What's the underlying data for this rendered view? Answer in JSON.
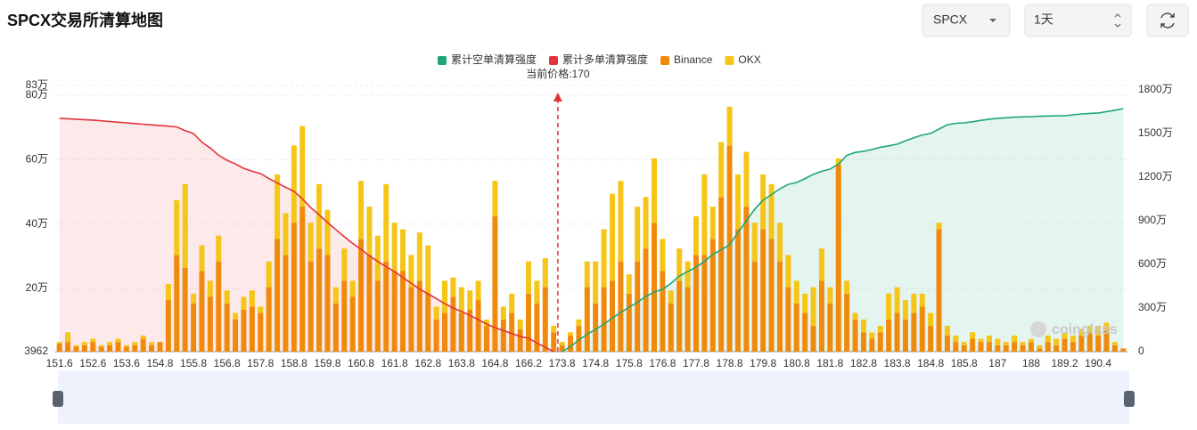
{
  "header": {
    "title": "SPCX交易所清算地图",
    "symbol_select": "SPCX",
    "interval_select": "1天"
  },
  "chart_data": {
    "type": "bar",
    "annotation": "当前价格:170",
    "watermark": "coinglass",
    "grid": true,
    "legend": "top",
    "categories": [
      "151.6",
      null,
      null,
      null,
      "152.6",
      null,
      null,
      null,
      "153.6",
      null,
      null,
      null,
      "154.8",
      null,
      null,
      null,
      "155.8",
      null,
      null,
      null,
      "156.8",
      null,
      null,
      null,
      "157.8",
      null,
      null,
      null,
      "158.8",
      null,
      null,
      null,
      "159.8",
      null,
      null,
      null,
      "160.8",
      null,
      null,
      null,
      "161.8",
      null,
      null,
      null,
      "162.8",
      null,
      null,
      null,
      "163.8",
      null,
      null,
      null,
      "164.8",
      null,
      null,
      null,
      "166.2",
      null,
      null,
      null,
      "173.8",
      null,
      null,
      null,
      "174.8",
      null,
      null,
      null,
      "175.8",
      null,
      null,
      null,
      "176.8",
      null,
      null,
      null,
      "177.8",
      null,
      null,
      null,
      "178.8",
      null,
      null,
      null,
      "179.8",
      null,
      null,
      null,
      "180.8",
      null,
      null,
      null,
      "181.8",
      null,
      null,
      null,
      "182.8",
      null,
      null,
      null,
      "183.8",
      null,
      null,
      null,
      "184.8",
      null,
      null,
      null,
      "185.8",
      null,
      null,
      null,
      "187",
      null,
      null,
      null,
      "188",
      null,
      null,
      null,
      "189.2",
      null,
      null,
      null,
      "190.4",
      null,
      null,
      null
    ],
    "ylim": [
      3962,
      830000
    ],
    "yticks": [
      3962,
      {
        "value": 200000,
        "label": "20万"
      },
      {
        "value": 400000,
        "label": "40万"
      },
      {
        "value": 600000,
        "label": "60万"
      },
      {
        "value": 800000,
        "label": "80万"
      },
      {
        "value": 830000,
        "label": "83万"
      }
    ],
    "y2lim": [
      0,
      18300000
    ],
    "y2ticks": [
      0,
      {
        "value": 3000000,
        "label": "300万"
      },
      {
        "value": 6000000,
        "label": "600万"
      },
      {
        "value": 9000000,
        "label": "900万"
      },
      {
        "value": 12000000,
        "label": "1200万"
      },
      {
        "value": 15000000,
        "label": "1500万"
      },
      {
        "value": 18000000,
        "label": "1800万"
      }
    ],
    "series": [
      {
        "name": "累计空单清算强度",
        "type": "line",
        "axis": "y2",
        "color": "#1fa57c",
        "area_color": "rgba(31,165,124,0.12)",
        "values": [
          null,
          null,
          null,
          null,
          null,
          null,
          null,
          null,
          null,
          null,
          null,
          null,
          null,
          null,
          null,
          null,
          null,
          null,
          null,
          null,
          null,
          null,
          null,
          null,
          null,
          null,
          null,
          null,
          null,
          null,
          null,
          null,
          null,
          null,
          null,
          null,
          null,
          null,
          null,
          null,
          null,
          null,
          null,
          null,
          null,
          null,
          null,
          null,
          null,
          null,
          null,
          null,
          null,
          null,
          null,
          null,
          null,
          null,
          null,
          null,
          0,
          350000,
          800000,
          1200000,
          1530000,
          1900000,
          2300000,
          2700000,
          3060000,
          3400000,
          3800000,
          4100000,
          4290000,
          4700000,
          5200000,
          5500000,
          5820000,
          6200000,
          6700000,
          7000000,
          7350000,
          8200000,
          9000000,
          9800000,
          10410000,
          10800000,
          11200000,
          11500000,
          11630000,
          11900000,
          12200000,
          12400000,
          12550000,
          12900000,
          13500000,
          13700000,
          13780000,
          13900000,
          14050000,
          14150000,
          14260000,
          14500000,
          14700000,
          14900000,
          15000000,
          15300000,
          15600000,
          15700000,
          15730000,
          15800000,
          15900000,
          15980000,
          16040000,
          16080000,
          16120000,
          16140000,
          16160000,
          16180000,
          16200000,
          16210000,
          16220000,
          16280000,
          16340000,
          16380000,
          16410000,
          16500000,
          16600000,
          16710000
        ]
      },
      {
        "name": "累计多单清算强度",
        "type": "line",
        "axis": "y2",
        "color": "#e0343c",
        "area_color": "rgba(224,52,60,0.11)",
        "values": [
          16040000,
          16010000,
          15980000,
          15950000,
          15920000,
          15870000,
          15820000,
          15770000,
          15730000,
          15680000,
          15640000,
          15590000,
          15550000,
          15500000,
          15450000,
          15200000,
          15000000,
          14400000,
          14000000,
          13500000,
          13160000,
          12900000,
          12600000,
          12400000,
          12240000,
          11900000,
          11600000,
          11300000,
          11020000,
          10500000,
          9900000,
          9400000,
          8880000,
          8400000,
          7900000,
          7450000,
          7040000,
          6600000,
          6200000,
          5850000,
          5510000,
          5100000,
          4700000,
          4300000,
          3980000,
          3650000,
          3300000,
          3000000,
          2760000,
          2500000,
          2200000,
          1900000,
          1650000,
          1450000,
          1250000,
          1050000,
          920000,
          600000,
          300000,
          0,
          null,
          null,
          null,
          null,
          null,
          null,
          null,
          null,
          null,
          null,
          null,
          null,
          null,
          null,
          null,
          null,
          null,
          null,
          null,
          null,
          null,
          null,
          null,
          null,
          null,
          null,
          null,
          null,
          null,
          null,
          null,
          null,
          null,
          null,
          null,
          null,
          null,
          null,
          null,
          null,
          null,
          null,
          null,
          null,
          null,
          null,
          null,
          null,
          null,
          null,
          null,
          null,
          null,
          null,
          null,
          null,
          null,
          null,
          null,
          null,
          null,
          null,
          null,
          null,
          null,
          null,
          null,
          null
        ]
      },
      {
        "name": "Binance",
        "type": "bar",
        "color": "#f08a0c",
        "values": [
          25000,
          30000,
          15000,
          20000,
          30000,
          15000,
          20000,
          30000,
          15000,
          20000,
          40000,
          20000,
          30000,
          160000,
          300000,
          260000,
          150000,
          250000,
          170000,
          280000,
          150000,
          100000,
          130000,
          140000,
          120000,
          200000,
          350000,
          300000,
          400000,
          450000,
          280000,
          320000,
          300000,
          150000,
          220000,
          170000,
          350000,
          300000,
          220000,
          280000,
          250000,
          250000,
          200000,
          220000,
          180000,
          100000,
          120000,
          170000,
          120000,
          130000,
          160000,
          80000,
          420000,
          100000,
          120000,
          70000,
          180000,
          150000,
          200000,
          60000,
          20000,
          50000,
          80000,
          200000,
          150000,
          200000,
          220000,
          280000,
          180000,
          280000,
          320000,
          400000,
          250000,
          150000,
          220000,
          200000,
          300000,
          300000,
          350000,
          480000,
          640000,
          380000,
          450000,
          280000,
          380000,
          350000,
          280000,
          200000,
          150000,
          120000,
          80000,
          220000,
          150000,
          580000,
          180000,
          100000,
          60000,
          40000,
          60000,
          100000,
          120000,
          100000,
          120000,
          140000,
          80000,
          380000,
          50000,
          30000,
          20000,
          40000,
          30000,
          30000,
          20000,
          20000,
          30000,
          20000,
          30000,
          10000,
          30000,
          20000,
          40000,
          30000,
          50000,
          60000,
          50000,
          70000,
          20000,
          10000
        ]
      },
      {
        "name": "OKX",
        "type": "bar",
        "color": "#f5c518",
        "values": [
          5000,
          30000,
          5000,
          10000,
          10000,
          5000,
          10000,
          10000,
          5000,
          10000,
          10000,
          10000,
          0,
          50000,
          170000,
          260000,
          30000,
          80000,
          50000,
          80000,
          40000,
          20000,
          40000,
          50000,
          20000,
          80000,
          200000,
          130000,
          240000,
          250000,
          120000,
          200000,
          140000,
          50000,
          100000,
          50000,
          180000,
          150000,
          140000,
          240000,
          150000,
          130000,
          100000,
          150000,
          150000,
          40000,
          100000,
          60000,
          80000,
          60000,
          60000,
          20000,
          110000,
          40000,
          60000,
          30000,
          100000,
          70000,
          90000,
          20000,
          10000,
          10000,
          20000,
          80000,
          130000,
          180000,
          270000,
          250000,
          60000,
          170000,
          160000,
          200000,
          100000,
          40000,
          100000,
          80000,
          120000,
          250000,
          100000,
          170000,
          120000,
          170000,
          170000,
          120000,
          170000,
          170000,
          120000,
          100000,
          70000,
          60000,
          120000,
          100000,
          50000,
          20000,
          40000,
          20000,
          40000,
          20000,
          20000,
          80000,
          80000,
          60000,
          60000,
          40000,
          40000,
          20000,
          30000,
          20000,
          10000,
          20000,
          10000,
          20000,
          20000,
          10000,
          20000,
          10000,
          10000,
          10000,
          20000,
          20000,
          20000,
          20000,
          20000,
          20000,
          30000,
          20000,
          10000,
          0
        ]
      }
    ]
  }
}
